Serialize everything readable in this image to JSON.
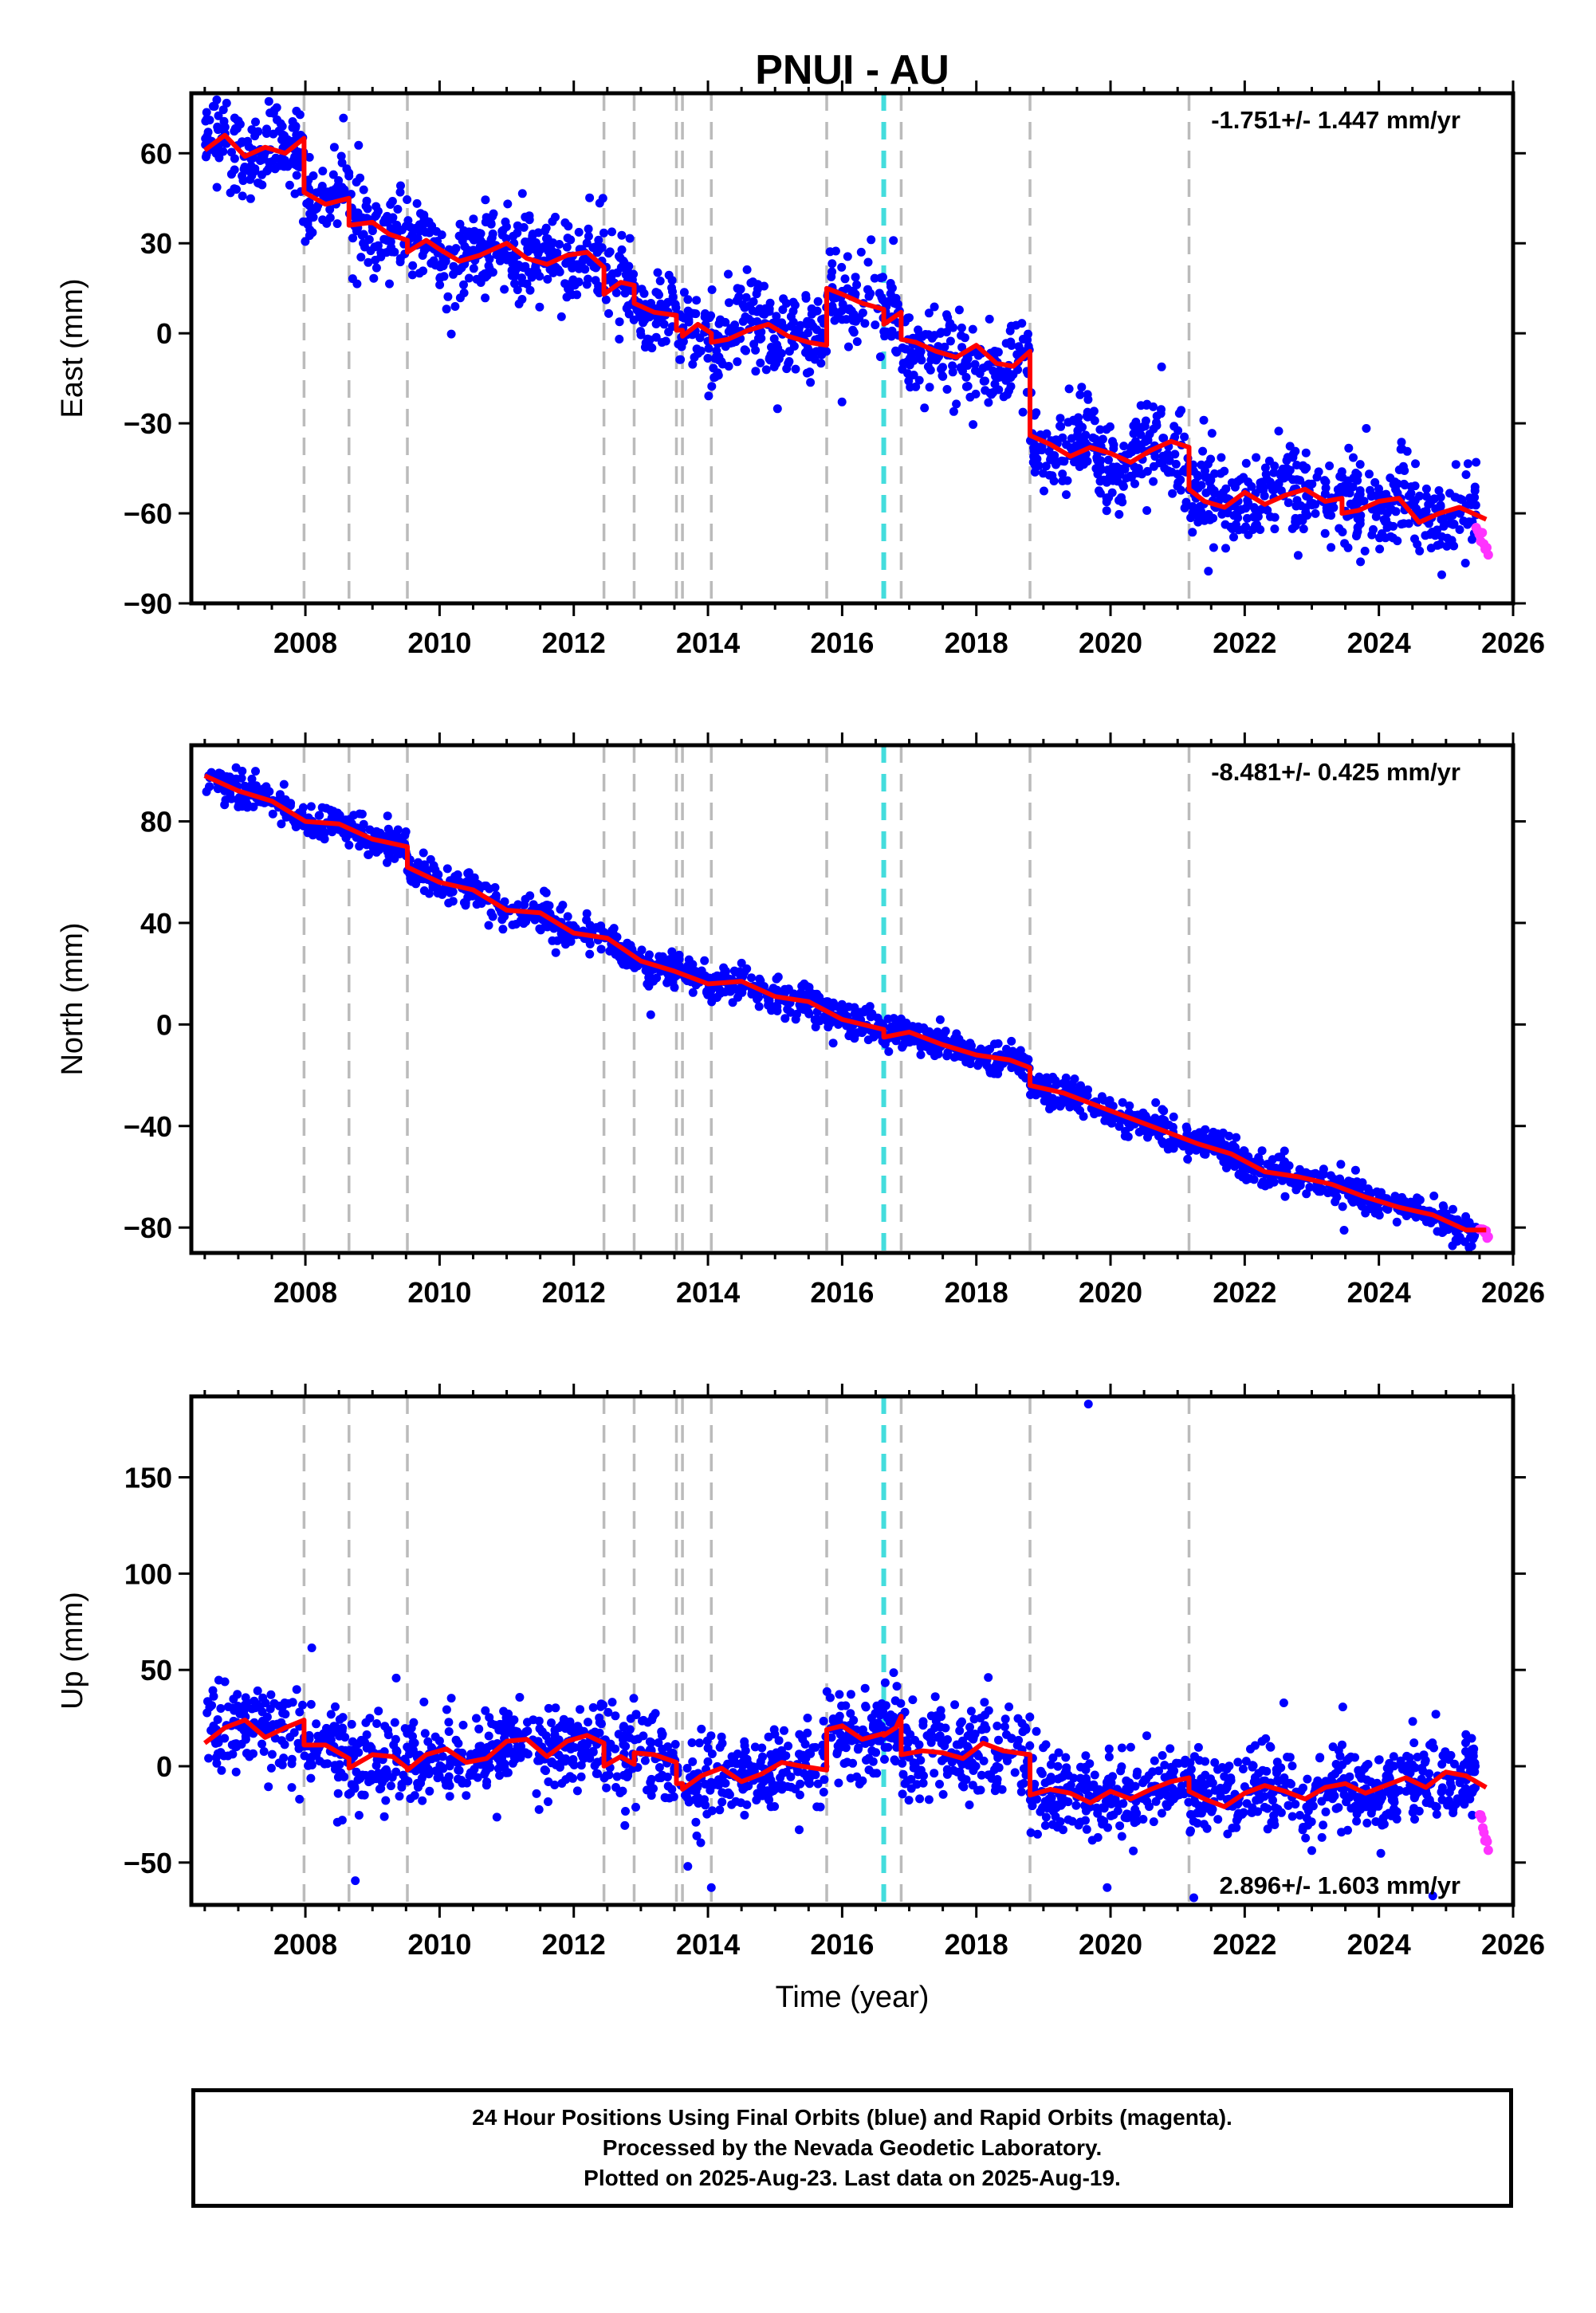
{
  "colors": {
    "final_orbits": "#0000ff",
    "rapid_orbits": "#ff33ff",
    "model": "#ff0000",
    "event_line": "#bbbbbb",
    "event_line_highlight": "#44dddd"
  },
  "footer": {
    "line1": "24 Hour Positions Using Final Orbits (blue) and Rapid Orbits (magenta).",
    "line2": "Processed by the Nevada Geodetic Laboratory.",
    "line3": "Plotted on 2025-Aug-23. Last data on 2025-Aug-19."
  },
  "chart_data": [
    {
      "type": "scatter",
      "title": "PNUI - AU",
      "ylabel": "East (mm)",
      "xlabel": "",
      "rate_label": "-1.751+/- 1.447 mm/yr",
      "xlim": [
        2006.3,
        2026.0
      ],
      "ylim": [
        -90,
        80
      ],
      "xticks": [
        2008,
        2010,
        2012,
        2014,
        2016,
        2018,
        2020,
        2022,
        2024,
        2026
      ],
      "yticks": [
        60,
        30,
        0,
        -30,
        -60,
        -90
      ],
      "event_lines": [
        2007.98,
        2008.65,
        2009.52,
        2012.45,
        2012.9,
        2013.53,
        2013.62,
        2014.05,
        2015.77,
        2016.88,
        2018.8,
        2021.17
      ],
      "highlight_event_lines": [
        2016.62
      ],
      "model": {
        "x": [
          2006.5,
          2006.8,
          2007.1,
          2007.4,
          2007.7,
          2007.98,
          2007.98,
          2008.3,
          2008.65,
          2008.65,
          2009.0,
          2009.25,
          2009.52,
          2009.52,
          2009.8,
          2010.0,
          2010.3,
          2010.6,
          2011.0,
          2011.3,
          2011.6,
          2011.9,
          2012.2,
          2012.45,
          2012.45,
          2012.7,
          2012.9,
          2012.9,
          2013.2,
          2013.53,
          2013.53,
          2013.62,
          2013.62,
          2013.85,
          2014.05,
          2014.05,
          2014.3,
          2014.6,
          2014.9,
          2015.2,
          2015.5,
          2015.77,
          2015.77,
          2016.0,
          2016.3,
          2016.62,
          2016.62,
          2016.88,
          2016.88,
          2017.1,
          2017.4,
          2017.7,
          2018.0,
          2018.3,
          2018.55,
          2018.8,
          2018.8,
          2019.1,
          2019.4,
          2019.7,
          2020.0,
          2020.3,
          2020.6,
          2020.9,
          2021.17,
          2021.17,
          2021.4,
          2021.7,
          2022.0,
          2022.3,
          2022.6,
          2022.9,
          2023.2,
          2023.45,
          2023.45,
          2023.7,
          2024.0,
          2024.3,
          2024.6,
          2024.9,
          2025.2,
          2025.6
        ],
        "y": [
          61,
          66,
          59,
          62,
          60,
          65,
          47,
          43,
          45,
          36,
          37,
          33,
          31,
          27,
          31,
          28,
          24,
          26,
          30,
          25,
          23,
          26,
          27,
          22,
          13,
          17,
          16,
          10,
          7,
          6,
          1,
          1,
          -1,
          3,
          0,
          -3,
          -2,
          1,
          3,
          -1,
          -3,
          -4,
          15,
          13,
          10,
          8,
          3,
          7,
          -2,
          -3,
          -6,
          -8,
          -4,
          -10,
          -11,
          -6,
          -34,
          -37,
          -41,
          -38,
          -40,
          -43,
          -39,
          -36,
          -38,
          -52,
          -56,
          -58,
          -53,
          -57,
          -54,
          -52,
          -56,
          -55,
          -60,
          -59,
          -56,
          -55,
          -63,
          -60,
          -58,
          -62
        ]
      },
      "scatter_params": {
        "spread": 7,
        "seasonal_amp": 7,
        "n_points": 1900
      },
      "rapid": {
        "x_start": 2025.45,
        "x_end": 2025.63,
        "y_start": -66,
        "y_end": -73
      }
    },
    {
      "type": "scatter",
      "title": "",
      "ylabel": "North (mm)",
      "xlabel": "",
      "rate_label": "-8.481+/- 0.425 mm/yr",
      "xlim": [
        2006.3,
        2026.0
      ],
      "ylim": [
        -90,
        110
      ],
      "xticks": [
        2008,
        2010,
        2012,
        2014,
        2016,
        2018,
        2020,
        2022,
        2024,
        2026
      ],
      "yticks": [
        80,
        40,
        0,
        -40,
        -80
      ],
      "event_lines": [
        2007.98,
        2008.65,
        2009.52,
        2012.45,
        2012.9,
        2013.53,
        2013.62,
        2014.05,
        2015.77,
        2016.88,
        2018.8,
        2021.17
      ],
      "highlight_event_lines": [
        2016.62
      ],
      "model": {
        "x": [
          2006.5,
          2007.0,
          2007.5,
          2008.0,
          2008.5,
          2009.0,
          2009.52,
          2009.52,
          2010.0,
          2010.5,
          2011.0,
          2011.5,
          2012.0,
          2012.5,
          2013.0,
          2013.5,
          2014.0,
          2014.5,
          2015.0,
          2015.5,
          2016.0,
          2016.62,
          2016.62,
          2017.0,
          2017.5,
          2018.0,
          2018.5,
          2018.8,
          2018.8,
          2019.3,
          2019.8,
          2020.3,
          2020.8,
          2021.3,
          2021.8,
          2022.3,
          2022.8,
          2023.3,
          2023.8,
          2024.3,
          2024.8,
          2025.3,
          2025.6
        ],
        "y": [
          98,
          92,
          88,
          80,
          79,
          73,
          70,
          62,
          56,
          53,
          45,
          44,
          36,
          34,
          25,
          21,
          16,
          17,
          11,
          9,
          2,
          -2,
          -5,
          -3,
          -8,
          -12,
          -14,
          -17,
          -24,
          -27,
          -32,
          -37,
          -42,
          -47,
          -51,
          -58,
          -60,
          -63,
          -68,
          -72,
          -75,
          -81,
          -81
        ]
      },
      "scatter_params": {
        "spread": 3.2,
        "seasonal_amp": 1.5,
        "n_points": 1600
      },
      "rapid": {
        "x_start": 2025.5,
        "x_end": 2025.63,
        "y_start": -80,
        "y_end": -84
      }
    },
    {
      "type": "scatter",
      "title": "",
      "ylabel": "Up (mm)",
      "xlabel": "Time (year)",
      "rate_label": "2.896+/- 1.603 mm/yr",
      "xlim": [
        2006.3,
        2026.0
      ],
      "ylim": [
        -72,
        192
      ],
      "xticks": [
        2008,
        2010,
        2012,
        2014,
        2016,
        2018,
        2020,
        2022,
        2024,
        2026
      ],
      "yticks": [
        150,
        100,
        50,
        0,
        -50
      ],
      "event_lines": [
        2007.98,
        2008.65,
        2009.52,
        2012.45,
        2012.9,
        2013.53,
        2013.62,
        2014.05,
        2015.77,
        2016.88,
        2018.8,
        2021.17
      ],
      "highlight_event_lines": [
        2016.62
      ],
      "model": {
        "x": [
          2006.5,
          2006.8,
          2007.1,
          2007.4,
          2007.7,
          2007.98,
          2007.98,
          2008.3,
          2008.65,
          2008.65,
          2009.0,
          2009.3,
          2009.52,
          2009.52,
          2009.8,
          2010.1,
          2010.4,
          2010.7,
          2011.0,
          2011.3,
          2011.6,
          2011.9,
          2012.2,
          2012.45,
          2012.45,
          2012.7,
          2012.9,
          2012.9,
          2013.2,
          2013.53,
          2013.53,
          2013.62,
          2013.62,
          2013.9,
          2014.2,
          2014.5,
          2014.8,
          2015.1,
          2015.4,
          2015.77,
          2015.77,
          2016.0,
          2016.3,
          2016.62,
          2016.62,
          2016.8,
          2016.88,
          2016.88,
          2017.2,
          2017.5,
          2017.8,
          2018.1,
          2018.4,
          2018.8,
          2018.8,
          2019.1,
          2019.4,
          2019.7,
          2020.0,
          2020.3,
          2020.6,
          2020.9,
          2021.17,
          2021.17,
          2021.4,
          2021.7,
          2022.0,
          2022.3,
          2022.6,
          2022.9,
          2023.2,
          2023.5,
          2023.8,
          2024.1,
          2024.4,
          2024.7,
          2025.0,
          2025.3,
          2025.6
        ],
        "y": [
          12,
          20,
          24,
          15,
          20,
          24,
          11,
          11,
          4,
          -1,
          6,
          5,
          -1,
          -2,
          6,
          9,
          2,
          4,
          13,
          14,
          5,
          13,
          16,
          12,
          0,
          5,
          1,
          7,
          6,
          2,
          -9,
          -9,
          -12,
          -5,
          -1,
          -8,
          -4,
          2,
          0,
          -2,
          19,
          21,
          14,
          17,
          16,
          20,
          26,
          6,
          8,
          7,
          4,
          12,
          8,
          6,
          -15,
          -12,
          -14,
          -19,
          -13,
          -17,
          -12,
          -8,
          -6,
          -13,
          -17,
          -21,
          -14,
          -10,
          -13,
          -17,
          -11,
          -9,
          -14,
          -10,
          -6,
          -11,
          -3,
          -5,
          -11
        ]
      },
      "scatter_params": {
        "spread": 11,
        "seasonal_amp": 5,
        "n_points": 1900
      },
      "outliers": [
        [
          2019.67,
          188
        ],
        [
          2013.7,
          -52
        ],
        [
          2014.05,
          -63
        ],
        [
          2019.95,
          -63
        ],
        [
          2008.55,
          -28
        ]
      ],
      "rapid": {
        "x_start": 2025.5,
        "x_end": 2025.63,
        "y_start": -25,
        "y_end": -44
      }
    }
  ]
}
